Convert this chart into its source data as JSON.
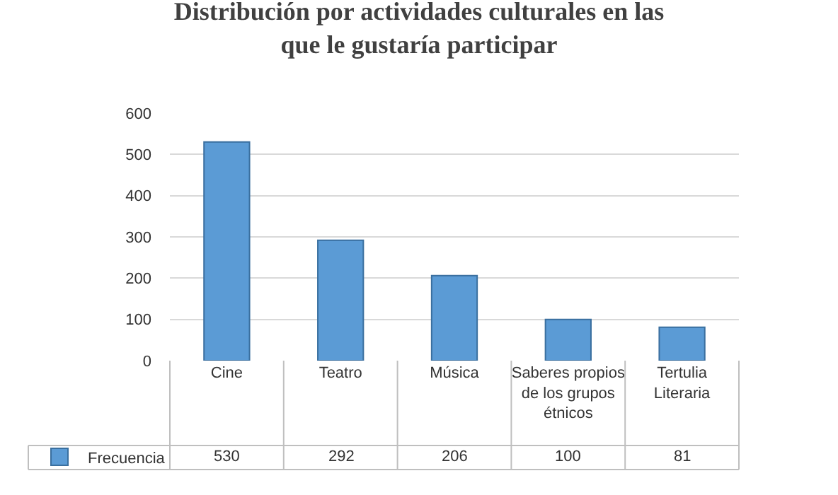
{
  "chart_data": {
    "type": "bar",
    "title": "Distribución por actividades culturales en las que le gustaría participar",
    "categories": [
      "Cine",
      "Teatro",
      "Música",
      "Saberes propios de los grupos étnicos",
      "Tertulia Literaria"
    ],
    "series": [
      {
        "name": "Frecuencia",
        "color": "#5b9bd5",
        "values": [
          530,
          292,
          206,
          100,
          81
        ]
      }
    ],
    "ylim": [
      0,
      600
    ],
    "yticks": [
      0,
      100,
      200,
      300,
      400,
      500,
      600
    ],
    "grid": "y",
    "legend": "bottom left",
    "data_labels": true
  }
}
